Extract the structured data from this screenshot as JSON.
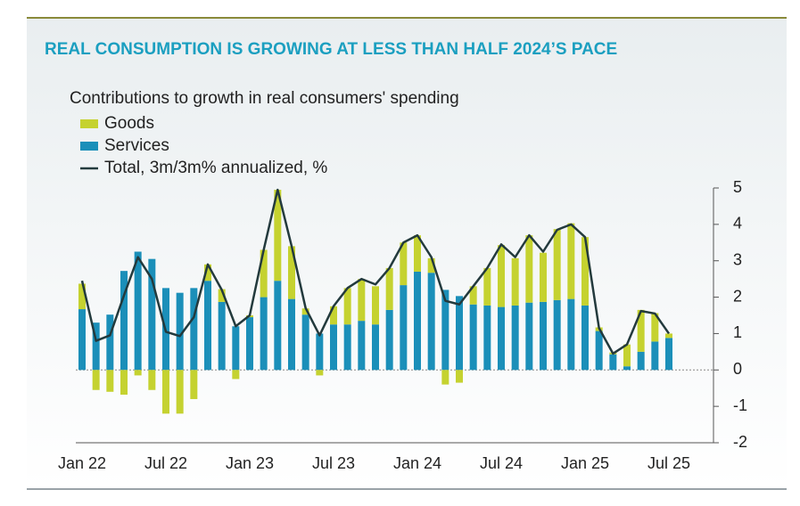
{
  "chart_data": {
    "type": "stacked-bar-line",
    "title": "REAL CONSUMPTION IS GROWING AT LESS THAN HALF 2024’S PACE",
    "subtitle": "Contributions to growth in real consumers' spending",
    "categories": [
      "Jan 22",
      null,
      null,
      null,
      null,
      null,
      "Jul 22",
      null,
      null,
      null,
      null,
      null,
      "Jan 23",
      null,
      null,
      null,
      null,
      null,
      "Jul 23",
      null,
      null,
      null,
      null,
      null,
      "Jan 24",
      null,
      null,
      null,
      null,
      null,
      "Jul 24",
      null,
      null,
      null,
      null,
      null,
      "Jan 25",
      null,
      null,
      null,
      null,
      null,
      "Jul 25"
    ],
    "series": [
      {
        "name": "Goods",
        "color": "#c5d230",
        "kind": "bar",
        "values": [
          0.7,
          -0.55,
          -0.6,
          -0.68,
          -0.15,
          -0.55,
          -1.2,
          -1.2,
          -0.8,
          0.45,
          0.35,
          -0.25,
          0.05,
          1.3,
          2.5,
          1.45,
          0.17,
          -0.15,
          0.5,
          1.0,
          1.15,
          1.05,
          1.15,
          1.17,
          1.0,
          0.4,
          -0.4,
          -0.35,
          0.5,
          1.03,
          1.7,
          1.3,
          1.85,
          1.35,
          1.95,
          2.08,
          1.88,
          0.1,
          0.05,
          0.6,
          1.15,
          0.78,
          0.12
        ]
      },
      {
        "name": "Services",
        "color": "#1b8fb9",
        "kind": "bar",
        "values": [
          1.67,
          1.3,
          1.52,
          2.72,
          3.25,
          3.05,
          2.25,
          2.12,
          2.25,
          2.45,
          1.87,
          1.2,
          1.45,
          2.0,
          2.45,
          1.95,
          1.52,
          1.0,
          1.25,
          1.25,
          1.35,
          1.25,
          1.65,
          2.33,
          2.7,
          2.67,
          2.2,
          2.03,
          1.8,
          1.77,
          1.73,
          1.77,
          1.85,
          1.87,
          1.92,
          1.95,
          1.77,
          1.07,
          0.43,
          0.1,
          0.5,
          0.78,
          0.88
        ]
      },
      {
        "name": "Total, 3m/3m% annualized, %",
        "color": "#233a3d",
        "kind": "line",
        "values": [
          2.45,
          0.8,
          0.95,
          2.05,
          3.1,
          2.5,
          1.05,
          0.93,
          1.45,
          2.9,
          2.2,
          1.2,
          1.5,
          3.3,
          4.95,
          3.4,
          1.7,
          0.95,
          1.75,
          2.25,
          2.5,
          2.35,
          2.8,
          3.5,
          3.7,
          3.1,
          1.9,
          1.8,
          2.3,
          2.8,
          3.45,
          3.1,
          3.7,
          3.25,
          3.85,
          4.0,
          3.65,
          1.15,
          0.45,
          0.7,
          1.62,
          1.55,
          1.0
        ]
      }
    ],
    "ylim": [
      -2,
      5
    ],
    "yticks": [
      -2,
      -1,
      0,
      1,
      2,
      3,
      4,
      5
    ],
    "legend": "top-left"
  }
}
